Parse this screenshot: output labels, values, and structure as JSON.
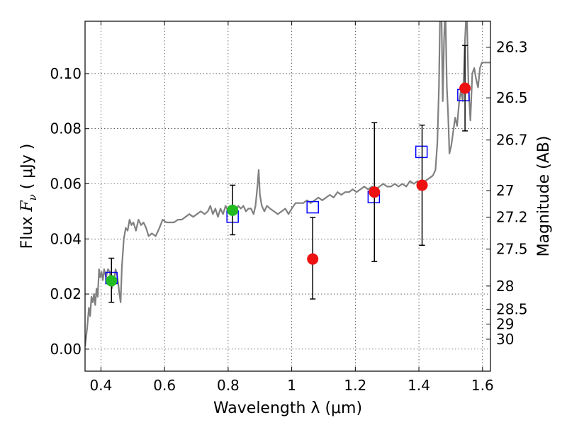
{
  "chart_data": {
    "type": "scatter",
    "xlabel": "Wavelength  λ (μm)",
    "ylabel_left": {
      "prefix": "Flux  ",
      "symbol": "F",
      "subscript": "ν",
      "unit": "  ( μJy )"
    },
    "ylabel_right": "Magnitude (AB)",
    "xlim": [
      0.35,
      1.625
    ],
    "ylim": [
      -0.008,
      0.119
    ],
    "grid": true,
    "x_ticks": [
      {
        "value": 0.4,
        "label": "0.4"
      },
      {
        "value": 0.6,
        "label": "0.6"
      },
      {
        "value": 0.8,
        "label": "0.8"
      },
      {
        "value": 1.0,
        "label": "1"
      },
      {
        "value": 1.2,
        "label": "1.2"
      },
      {
        "value": 1.4,
        "label": "1.4"
      },
      {
        "value": 1.6,
        "label": "1.6"
      }
    ],
    "y_ticks": [
      {
        "value": 0.0,
        "label": "0.00"
      },
      {
        "value": 0.02,
        "label": "0.02"
      },
      {
        "value": 0.04,
        "label": "0.04"
      },
      {
        "value": 0.06,
        "label": "0.06"
      },
      {
        "value": 0.08,
        "label": "0.08"
      },
      {
        "value": 0.1,
        "label": "0.10"
      }
    ],
    "magnitude_ticks": [
      {
        "label": "26.3",
        "flux": 0.1096
      },
      {
        "label": "26.5",
        "flux": 0.0912
      },
      {
        "label": "26.7",
        "flux": 0.0759
      },
      {
        "label": "27",
        "flux": 0.0575
      },
      {
        "label": "27.2",
        "flux": 0.0479
      },
      {
        "label": "27.5",
        "flux": 0.0363
      },
      {
        "label": "28",
        "flux": 0.0229
      },
      {
        "label": "28.5",
        "flux": 0.0145
      },
      {
        "label": "29",
        "flux": 0.0091
      },
      {
        "label": "30",
        "flux": 0.0036
      }
    ],
    "spectrum": {
      "color": "#808080",
      "points": [
        [
          0.35,
          0.001
        ],
        [
          0.357,
          0.008
        ],
        [
          0.362,
          0.015
        ],
        [
          0.366,
          0.012
        ],
        [
          0.37,
          0.019
        ],
        [
          0.374,
          0.017
        ],
        [
          0.378,
          0.02
        ],
        [
          0.382,
          0.016
        ],
        [
          0.386,
          0.022
        ],
        [
          0.39,
          0.019
        ],
        [
          0.394,
          0.029
        ],
        [
          0.398,
          0.026
        ],
        [
          0.402,
          0.028
        ],
        [
          0.406,
          0.025
        ],
        [
          0.41,
          0.029
        ],
        [
          0.416,
          0.026
        ],
        [
          0.422,
          0.029
        ],
        [
          0.428,
          0.028
        ],
        [
          0.434,
          0.022
        ],
        [
          0.44,
          0.024
        ],
        [
          0.446,
          0.029
        ],
        [
          0.452,
          0.026
        ],
        [
          0.458,
          0.02
        ],
        [
          0.462,
          0.017
        ],
        [
          0.466,
          0.03
        ],
        [
          0.472,
          0.04
        ],
        [
          0.478,
          0.044
        ],
        [
          0.484,
          0.043
        ],
        [
          0.49,
          0.047
        ],
        [
          0.496,
          0.045
        ],
        [
          0.502,
          0.046
        ],
        [
          0.51,
          0.043
        ],
        [
          0.518,
          0.047
        ],
        [
          0.526,
          0.045
        ],
        [
          0.534,
          0.046
        ],
        [
          0.542,
          0.044
        ],
        [
          0.55,
          0.041
        ],
        [
          0.56,
          0.042
        ],
        [
          0.572,
          0.041
        ],
        [
          0.584,
          0.044
        ],
        [
          0.594,
          0.047
        ],
        [
          0.606,
          0.046
        ],
        [
          0.618,
          0.046
        ],
        [
          0.63,
          0.046
        ],
        [
          0.642,
          0.047
        ],
        [
          0.654,
          0.047
        ],
        [
          0.666,
          0.048
        ],
        [
          0.678,
          0.049
        ],
        [
          0.69,
          0.048
        ],
        [
          0.702,
          0.049
        ],
        [
          0.714,
          0.05
        ],
        [
          0.726,
          0.049
        ],
        [
          0.736,
          0.05
        ],
        [
          0.744,
          0.052
        ],
        [
          0.752,
          0.049
        ],
        [
          0.76,
          0.051
        ],
        [
          0.768,
          0.048
        ],
        [
          0.776,
          0.051
        ],
        [
          0.784,
          0.049
        ],
        [
          0.792,
          0.052
        ],
        [
          0.8,
          0.05
        ],
        [
          0.808,
          0.051
        ],
        [
          0.816,
          0.052
        ],
        [
          0.824,
          0.05
        ],
        [
          0.832,
          0.052
        ],
        [
          0.84,
          0.051
        ],
        [
          0.848,
          0.052
        ],
        [
          0.856,
          0.05
        ],
        [
          0.864,
          0.051
        ],
        [
          0.872,
          0.051
        ],
        [
          0.88,
          0.049
        ],
        [
          0.886,
          0.052
        ],
        [
          0.892,
          0.059
        ],
        [
          0.896,
          0.065
        ],
        [
          0.9,
          0.056
        ],
        [
          0.906,
          0.052
        ],
        [
          0.914,
          0.05
        ],
        [
          0.922,
          0.052
        ],
        [
          0.932,
          0.051
        ],
        [
          0.944,
          0.05
        ],
        [
          0.956,
          0.049
        ],
        [
          0.968,
          0.05
        ],
        [
          0.98,
          0.051
        ],
        [
          0.99,
          0.049
        ],
        [
          1.0,
          0.051
        ],
        [
          1.012,
          0.053
        ],
        [
          1.024,
          0.053
        ],
        [
          1.036,
          0.053
        ],
        [
          1.048,
          0.054
        ],
        [
          1.06,
          0.053
        ],
        [
          1.072,
          0.054
        ],
        [
          1.084,
          0.055
        ],
        [
          1.096,
          0.054
        ],
        [
          1.108,
          0.055
        ],
        [
          1.12,
          0.056
        ],
        [
          1.132,
          0.055
        ],
        [
          1.144,
          0.057
        ],
        [
          1.156,
          0.056
        ],
        [
          1.168,
          0.057
        ],
        [
          1.18,
          0.057
        ],
        [
          1.192,
          0.058
        ],
        [
          1.204,
          0.057
        ],
        [
          1.216,
          0.058
        ],
        [
          1.228,
          0.059
        ],
        [
          1.24,
          0.058
        ],
        [
          1.252,
          0.059
        ],
        [
          1.264,
          0.058
        ],
        [
          1.276,
          0.059
        ],
        [
          1.288,
          0.06
        ],
        [
          1.3,
          0.059
        ],
        [
          1.312,
          0.059
        ],
        [
          1.324,
          0.06
        ],
        [
          1.336,
          0.059
        ],
        [
          1.348,
          0.06
        ],
        [
          1.36,
          0.059
        ],
        [
          1.372,
          0.061
        ],
        [
          1.384,
          0.06
        ],
        [
          1.396,
          0.061
        ],
        [
          1.408,
          0.06
        ],
        [
          1.42,
          0.061
        ],
        [
          1.432,
          0.062
        ],
        [
          1.444,
          0.063
        ],
        [
          1.452,
          0.065
        ],
        [
          1.458,
          0.075
        ],
        [
          1.463,
          0.095
        ],
        [
          1.467,
          0.125
        ],
        [
          1.471,
          0.122
        ],
        [
          1.475,
          0.09
        ],
        [
          1.479,
          0.112
        ],
        [
          1.483,
          0.125
        ],
        [
          1.488,
          0.095
        ],
        [
          1.492,
          0.085
        ],
        [
          1.496,
          0.071
        ],
        [
          1.502,
          0.074
        ],
        [
          1.508,
          0.079
        ],
        [
          1.514,
          0.084
        ],
        [
          1.52,
          0.081
        ],
        [
          1.526,
          0.089
        ],
        [
          1.532,
          0.094
        ],
        [
          1.538,
          0.09
        ],
        [
          1.544,
          0.11
        ],
        [
          1.55,
          0.125
        ],
        [
          1.556,
          0.095
        ],
        [
          1.562,
          0.083
        ],
        [
          1.568,
          0.1
        ],
        [
          1.574,
          0.102
        ],
        [
          1.58,
          0.098
        ],
        [
          1.586,
          0.095
        ],
        [
          1.592,
          0.102
        ],
        [
          1.598,
          0.104
        ],
        [
          1.606,
          0.104
        ],
        [
          1.614,
          0.104
        ],
        [
          1.625,
          0.104
        ]
      ]
    },
    "model_points": {
      "color": "#0000ff",
      "points": [
        [
          0.433,
          0.0258
        ],
        [
          0.814,
          0.0481
        ],
        [
          1.066,
          0.0515
        ],
        [
          1.258,
          0.0552
        ],
        [
          1.408,
          0.0716
        ],
        [
          1.54,
          0.0922
        ]
      ]
    },
    "observed_points": [
      {
        "x": 0.433,
        "y": 0.0248,
        "err_low": 0.017,
        "err_high": 0.033,
        "color": "#22bb22"
      },
      {
        "x": 0.814,
        "y": 0.0504,
        "err_low": 0.0415,
        "err_high": 0.0595,
        "color": "#22bb22"
      },
      {
        "x": 1.066,
        "y": 0.0327,
        "err_low": 0.0182,
        "err_high": 0.0478,
        "color": "#ee1111"
      },
      {
        "x": 1.26,
        "y": 0.057,
        "err_low": 0.0318,
        "err_high": 0.0822,
        "color": "#ee1111"
      },
      {
        "x": 1.41,
        "y": 0.0595,
        "err_low": 0.0377,
        "err_high": 0.0813,
        "color": "#ee1111"
      },
      {
        "x": 1.545,
        "y": 0.0947,
        "err_low": 0.0792,
        "err_high": 0.1102,
        "color": "#ee1111"
      }
    ]
  }
}
